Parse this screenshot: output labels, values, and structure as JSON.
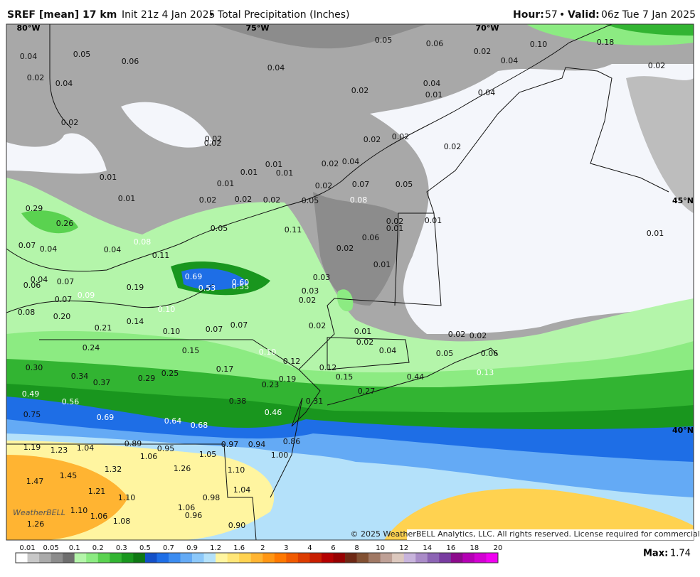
{
  "header": {
    "model": "SREF [mean] 17 km",
    "init": "Init 21z 4 Jan 2025",
    "bullet": "•",
    "product": "Total Precipitation (Inches)",
    "hour_label": "Hour:",
    "hour": "57",
    "valid_label": "Valid:",
    "valid": "06z Tue 7 Jan 2025"
  },
  "map": {
    "lon_labels": [
      "80°W",
      "75°W",
      "70°W"
    ],
    "lat_labels": [
      "45°N",
      "40°N"
    ],
    "credit": "WeatherBELL",
    "copyright": "© 2025 WeatherBELL Analytics, LLC. All rights reserved. License required for commercial distribution.",
    "values": [
      "0.04",
      "0.05",
      "0.06",
      "0.02",
      "0.04",
      "0.04",
      "0.05",
      "0.06",
      "0.02",
      "0.04",
      "0.10",
      "0.18",
      "0.02",
      "0.02",
      "0.04",
      "0.01",
      "0.04",
      "0.02",
      "0.02",
      "0.02",
      "0.02",
      "0.02",
      "0.02",
      "0.01",
      "0.01",
      "0.01",
      "0.01",
      "0.01",
      "0.02",
      "0.04",
      "0.02",
      "0.07",
      "0.05",
      "0.01",
      "0.02",
      "0.02",
      "0.02",
      "0.05",
      "0.08",
      "0.29",
      "0.26",
      "0.05",
      "0.11",
      "0.02",
      "0.01",
      "0.01",
      "0.07",
      "0.04",
      "0.04",
      "0.08",
      "0.11",
      "0.06",
      "0.02",
      "0.01",
      "0.69",
      "0.53",
      "0.60",
      "0.55",
      "0.03",
      "0.06",
      "0.04",
      "0.07",
      "0.19",
      "0.09",
      "0.03",
      "0.07",
      "0.02",
      "0.08",
      "0.20",
      "0.10",
      "0.14",
      "0.21",
      "0.10",
      "0.07",
      "0.07",
      "0.02",
      "0.01",
      "0.02",
      "0.02",
      "0.02",
      "0.04",
      "0.05",
      "0.06",
      "0.24",
      "0.15",
      "0.10",
      "0.12",
      "0.12",
      "0.30",
      "0.17",
      "0.34",
      "0.25",
      "0.29",
      "0.44",
      "0.13",
      "0.15",
      "0.37",
      "0.23",
      "0.19",
      "0.27",
      "0.49",
      "0.56",
      "0.38",
      "0.31",
      "0.75",
      "0.69",
      "0.46",
      "0.64",
      "0.68",
      "0.89",
      "0.95",
      "0.97",
      "0.94",
      "0.86",
      "1.19",
      "1.23",
      "1.04",
      "1.06",
      "1.05",
      "1.00",
      "1.32",
      "1.26",
      "1.10",
      "1.45",
      "1.47",
      "1.04",
      "1.21",
      "1.10",
      "0.98",
      "1.10",
      "1.06",
      "1.08",
      "1.06",
      "0.96",
      "1.26",
      "0.90",
      "0.01"
    ]
  },
  "legend": {
    "ticks": [
      "0.01",
      "0.05",
      "0.1",
      "0.2",
      "0.3",
      "0.5",
      "0.7",
      "0.9",
      "1.2",
      "1.6",
      "2",
      "3",
      "4",
      "6",
      "8",
      "10",
      "12",
      "14",
      "16",
      "18",
      "20"
    ],
    "colors": [
      "#ffffff",
      "#c8c8c8",
      "#aaaaaa",
      "#8c8c8c",
      "#6e6e6e",
      "#b4f5aa",
      "#8ceb82",
      "#5ad250",
      "#32b432",
      "#19961e",
      "#0f7814",
      "#1450c8",
      "#1e6ee6",
      "#3c8cf0",
      "#64aaf5",
      "#8cc8fa",
      "#b4e1fa",
      "#fff5a0",
      "#ffe678",
      "#ffd250",
      "#ffb432",
      "#ff9614",
      "#ff7800",
      "#f05a00",
      "#dc3c00",
      "#c81e00",
      "#b40000",
      "#960000",
      "#6e2814",
      "#825032",
      "#a07864",
      "#bea096",
      "#dcc8be",
      "#c8b4dc",
      "#aa8cc8",
      "#8c64b4",
      "#783ca0",
      "#8c0a8c",
      "#b400b4",
      "#d200d2",
      "#f000f0"
    ],
    "max_label": "Max:",
    "max": "1.74"
  }
}
